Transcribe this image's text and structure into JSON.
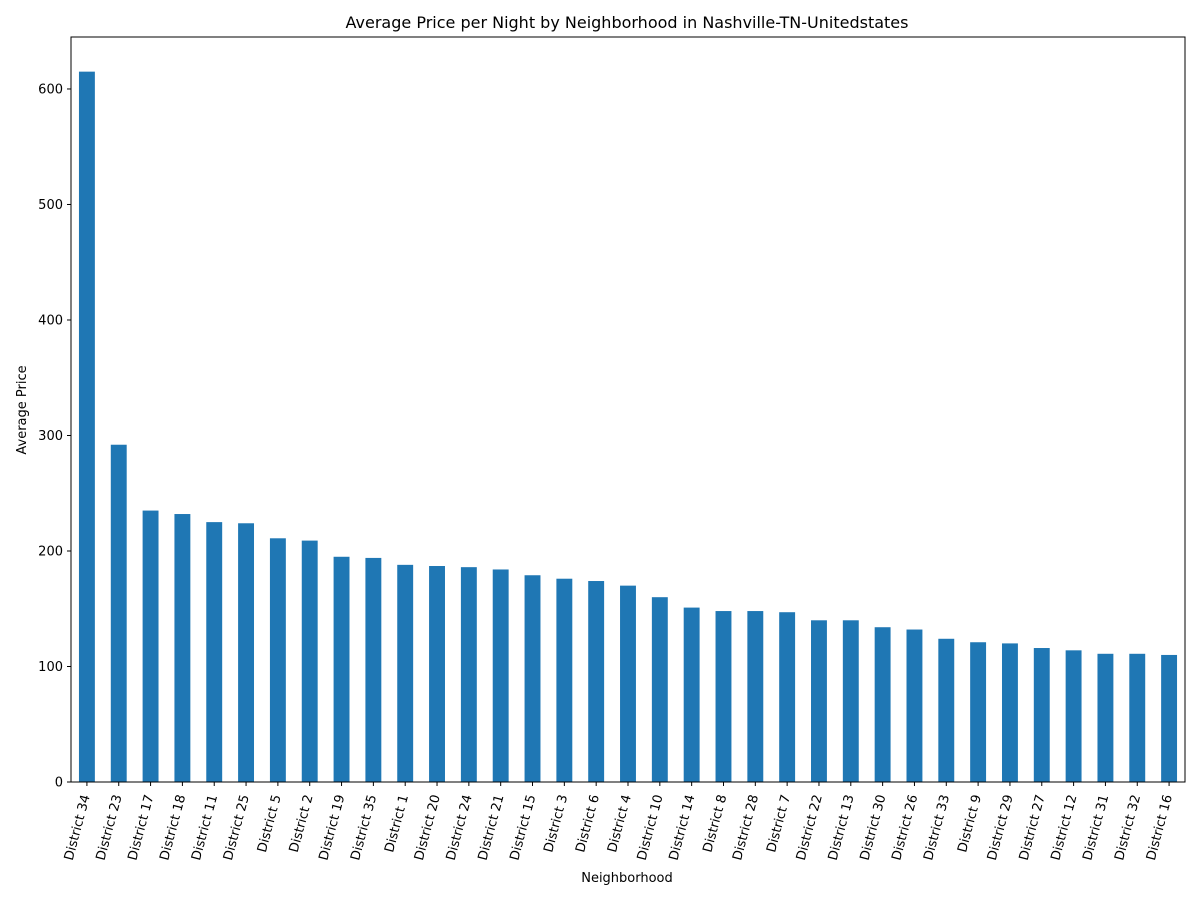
{
  "chart_data": {
    "type": "bar",
    "title": "Average Price per Night by Neighborhood in Nashville-TN-Unitedstates",
    "xlabel": "Neighborhood",
    "ylabel": "Average Price",
    "ylim": [
      0,
      645
    ],
    "yticks": [
      0,
      100,
      200,
      300,
      400,
      500,
      600
    ],
    "grid": false,
    "legend": "none",
    "bar_color": "#1f77b4",
    "categories": [
      "District 34",
      "District 23",
      "District 17",
      "District 18",
      "District 11",
      "District 25",
      "District 5",
      "District 2",
      "District 19",
      "District 35",
      "District 1",
      "District 20",
      "District 24",
      "District 21",
      "District 15",
      "District 3",
      "District 6",
      "District 4",
      "District 10",
      "District 14",
      "District 8",
      "District 28",
      "District 7",
      "District 22",
      "District 13",
      "District 30",
      "District 26",
      "District 33",
      "District 9",
      "District 29",
      "District 27",
      "District 12",
      "District 31",
      "District 32",
      "District 16"
    ],
    "values": [
      615,
      292,
      235,
      232,
      225,
      224,
      211,
      209,
      195,
      194,
      188,
      187,
      186,
      184,
      179,
      176,
      174,
      170,
      160,
      151,
      148,
      148,
      147,
      140,
      140,
      134,
      132,
      124,
      121,
      120,
      116,
      114,
      111,
      111,
      110
    ]
  }
}
